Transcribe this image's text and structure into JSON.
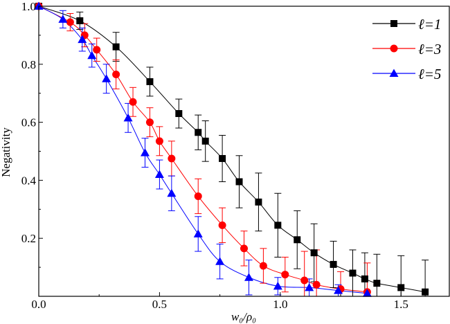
{
  "chart_data": {
    "type": "scatter",
    "xlabel": "w₀/ρ₀",
    "ylabel": "Negativity",
    "xlim": [
      0,
      1.7
    ],
    "ylim": [
      0,
      1.0
    ],
    "x_ticks": [
      "0.0",
      "0.5",
      "1.0",
      "1.5"
    ],
    "y_ticks": [
      "0.2",
      "0.4",
      "0.6",
      "0.8",
      "1.0"
    ],
    "legend_position": "top-right",
    "series": [
      {
        "name": "ℓ=1",
        "color": "#000000",
        "marker": "square",
        "points": [
          {
            "x": 0.0,
            "y": 1.0,
            "err": 0.0
          },
          {
            "x": 0.17,
            "y": 0.95,
            "err": 0.03
          },
          {
            "x": 0.32,
            "y": 0.86,
            "err": 0.05
          },
          {
            "x": 0.46,
            "y": 0.74,
            "err": 0.05
          },
          {
            "x": 0.58,
            "y": 0.63,
            "err": 0.05
          },
          {
            "x": 0.66,
            "y": 0.565,
            "err": 0.06
          },
          {
            "x": 0.69,
            "y": 0.535,
            "err": 0.07
          },
          {
            "x": 0.76,
            "y": 0.475,
            "err": 0.08
          },
          {
            "x": 0.83,
            "y": 0.395,
            "err": 0.09
          },
          {
            "x": 0.91,
            "y": 0.325,
            "err": 0.1
          },
          {
            "x": 0.99,
            "y": 0.245,
            "err": 0.11
          },
          {
            "x": 1.07,
            "y": 0.195,
            "err": 0.1
          },
          {
            "x": 1.14,
            "y": 0.15,
            "err": 0.1
          },
          {
            "x": 1.22,
            "y": 0.11,
            "err": 0.08
          },
          {
            "x": 1.3,
            "y": 0.08,
            "err": 0.08
          },
          {
            "x": 1.35,
            "y": 0.06,
            "err": 0.09
          },
          {
            "x": 1.4,
            "y": 0.045,
            "err": 0.1
          },
          {
            "x": 1.5,
            "y": 0.03,
            "err": 0.11
          },
          {
            "x": 1.6,
            "y": 0.015,
            "err": 0.11
          }
        ]
      },
      {
        "name": "ℓ=3",
        "color": "#ff0000",
        "marker": "circle",
        "points": [
          {
            "x": 0.0,
            "y": 1.0,
            "err": 0.0
          },
          {
            "x": 0.13,
            "y": 0.945,
            "err": 0.03
          },
          {
            "x": 0.19,
            "y": 0.9,
            "err": 0.04
          },
          {
            "x": 0.24,
            "y": 0.85,
            "err": 0.04
          },
          {
            "x": 0.32,
            "y": 0.765,
            "err": 0.05
          },
          {
            "x": 0.39,
            "y": 0.67,
            "err": 0.05
          },
          {
            "x": 0.46,
            "y": 0.6,
            "err": 0.05
          },
          {
            "x": 0.5,
            "y": 0.535,
            "err": 0.05
          },
          {
            "x": 0.55,
            "y": 0.475,
            "err": 0.06
          },
          {
            "x": 0.66,
            "y": 0.345,
            "err": 0.06
          },
          {
            "x": 0.76,
            "y": 0.245,
            "err": 0.06
          },
          {
            "x": 0.85,
            "y": 0.165,
            "err": 0.06
          },
          {
            "x": 0.93,
            "y": 0.105,
            "err": 0.06
          },
          {
            "x": 1.02,
            "y": 0.075,
            "err": 0.06
          },
          {
            "x": 1.1,
            "y": 0.055,
            "err": 0.1
          },
          {
            "x": 1.15,
            "y": 0.04,
            "err": 0.12
          },
          {
            "x": 1.25,
            "y": 0.025,
            "err": 0.06
          },
          {
            "x": 1.36,
            "y": 0.015,
            "err": 0.1
          }
        ]
      },
      {
        "name": "ℓ=5",
        "color": "#0000ff",
        "marker": "triangle",
        "points": [
          {
            "x": 0.0,
            "y": 1.0,
            "err": 0.0
          },
          {
            "x": 0.1,
            "y": 0.955,
            "err": 0.03
          },
          {
            "x": 0.18,
            "y": 0.885,
            "err": 0.04
          },
          {
            "x": 0.22,
            "y": 0.83,
            "err": 0.04
          },
          {
            "x": 0.28,
            "y": 0.75,
            "err": 0.05
          },
          {
            "x": 0.37,
            "y": 0.615,
            "err": 0.05
          },
          {
            "x": 0.44,
            "y": 0.495,
            "err": 0.05
          },
          {
            "x": 0.5,
            "y": 0.42,
            "err": 0.05
          },
          {
            "x": 0.55,
            "y": 0.355,
            "err": 0.06
          },
          {
            "x": 0.66,
            "y": 0.215,
            "err": 0.06
          },
          {
            "x": 0.75,
            "y": 0.12,
            "err": 0.06
          },
          {
            "x": 0.87,
            "y": 0.065,
            "err": 0.06
          },
          {
            "x": 0.99,
            "y": 0.035,
            "err": 0.03
          },
          {
            "x": 1.12,
            "y": 0.03,
            "err": 0.03
          },
          {
            "x": 1.24,
            "y": 0.02,
            "err": 0.02
          },
          {
            "x": 1.36,
            "y": 0.01,
            "err": 0.01
          }
        ]
      }
    ]
  }
}
